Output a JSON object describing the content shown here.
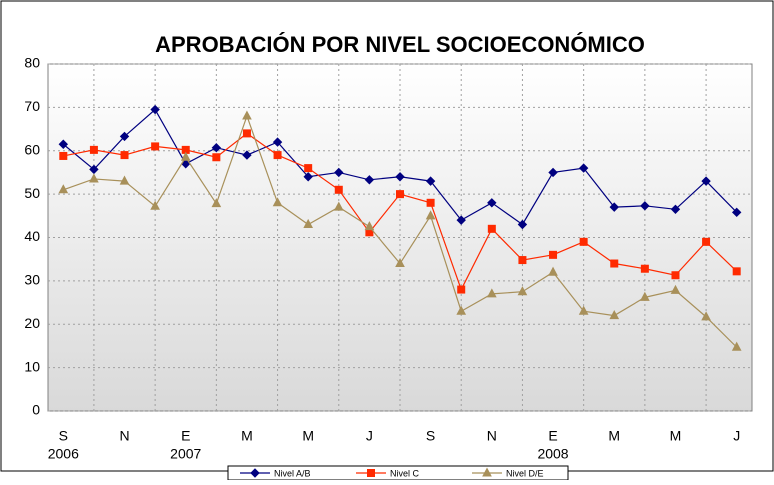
{
  "chart_data": {
    "type": "line",
    "title": "APROBACIÓN POR  NIVEL SOCIOECONÓMICO",
    "categories": [
      "S",
      null,
      "N",
      null,
      "E",
      null,
      "M",
      null,
      "M",
      null,
      "J",
      null,
      "S",
      null,
      "N",
      null,
      "E",
      null,
      "M",
      null,
      "M",
      null,
      "J"
    ],
    "year_labels": [
      "2006",
      null,
      null,
      null,
      "2007",
      null,
      null,
      null,
      null,
      null,
      null,
      null,
      null,
      null,
      null,
      null,
      "2008",
      null,
      null,
      null,
      null,
      null,
      null
    ],
    "series": [
      {
        "name": "Nivel A/B",
        "color": "#000080",
        "marker": "diamond",
        "values": [
          61.5,
          55.7,
          63.3,
          69.5,
          57,
          60.7,
          59,
          62,
          54,
          55,
          53.3,
          54,
          53,
          44,
          48,
          43,
          55,
          56,
          47,
          47.3,
          46.5,
          53,
          45.8
        ]
      },
      {
        "name": "Nivel C",
        "color": "#ff2a00",
        "marker": "square",
        "values": [
          58.8,
          60.2,
          59,
          61,
          60.2,
          58.5,
          64,
          59,
          56,
          51,
          41.2,
          50,
          48,
          28,
          42,
          34.8,
          36,
          39,
          34,
          32.8,
          31.3,
          39,
          32.2
        ]
      },
      {
        "name": "Nivel D/E",
        "color": "#a8905a",
        "marker": "triangle",
        "values": [
          51,
          53.5,
          53,
          47.2,
          58.5,
          47.8,
          68,
          48,
          43,
          47,
          42.5,
          34,
          45,
          23,
          27,
          27.5,
          32,
          23,
          22,
          26.2,
          27.8,
          21.7,
          14.7
        ]
      }
    ],
    "ylim": [
      0,
      80
    ],
    "yticks": [
      0,
      10,
      20,
      30,
      40,
      50,
      60,
      70,
      80
    ],
    "grid": true
  }
}
